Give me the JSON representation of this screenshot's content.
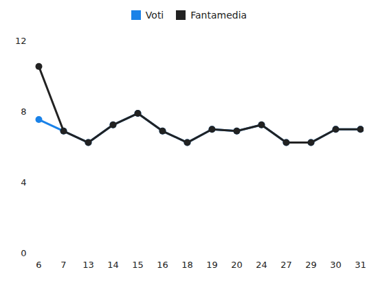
{
  "chart_data": {
    "type": "line",
    "categories": [
      6,
      7,
      13,
      14,
      15,
      16,
      18,
      19,
      20,
      24,
      27,
      29,
      30,
      31
    ],
    "series": [
      {
        "name": "Voti",
        "color": "#1a82e8",
        "values": [
          7.55,
          6.9,
          6.25,
          7.25,
          7.9,
          6.9,
          6.25,
          7,
          6.9,
          7.25,
          6.25,
          6.25,
          7,
          7
        ]
      },
      {
        "name": "Fantamedia",
        "color": "#222222",
        "values": [
          10.55,
          6.9,
          6.25,
          7.25,
          7.9,
          6.9,
          6.25,
          7,
          6.9,
          7.25,
          6.25,
          6.25,
          7,
          7
        ]
      }
    ],
    "ylim": [
      0,
      12
    ],
    "yticks": [
      0,
      4,
      8,
      12
    ],
    "grid": false,
    "legend": "top",
    "marker": "circle"
  }
}
